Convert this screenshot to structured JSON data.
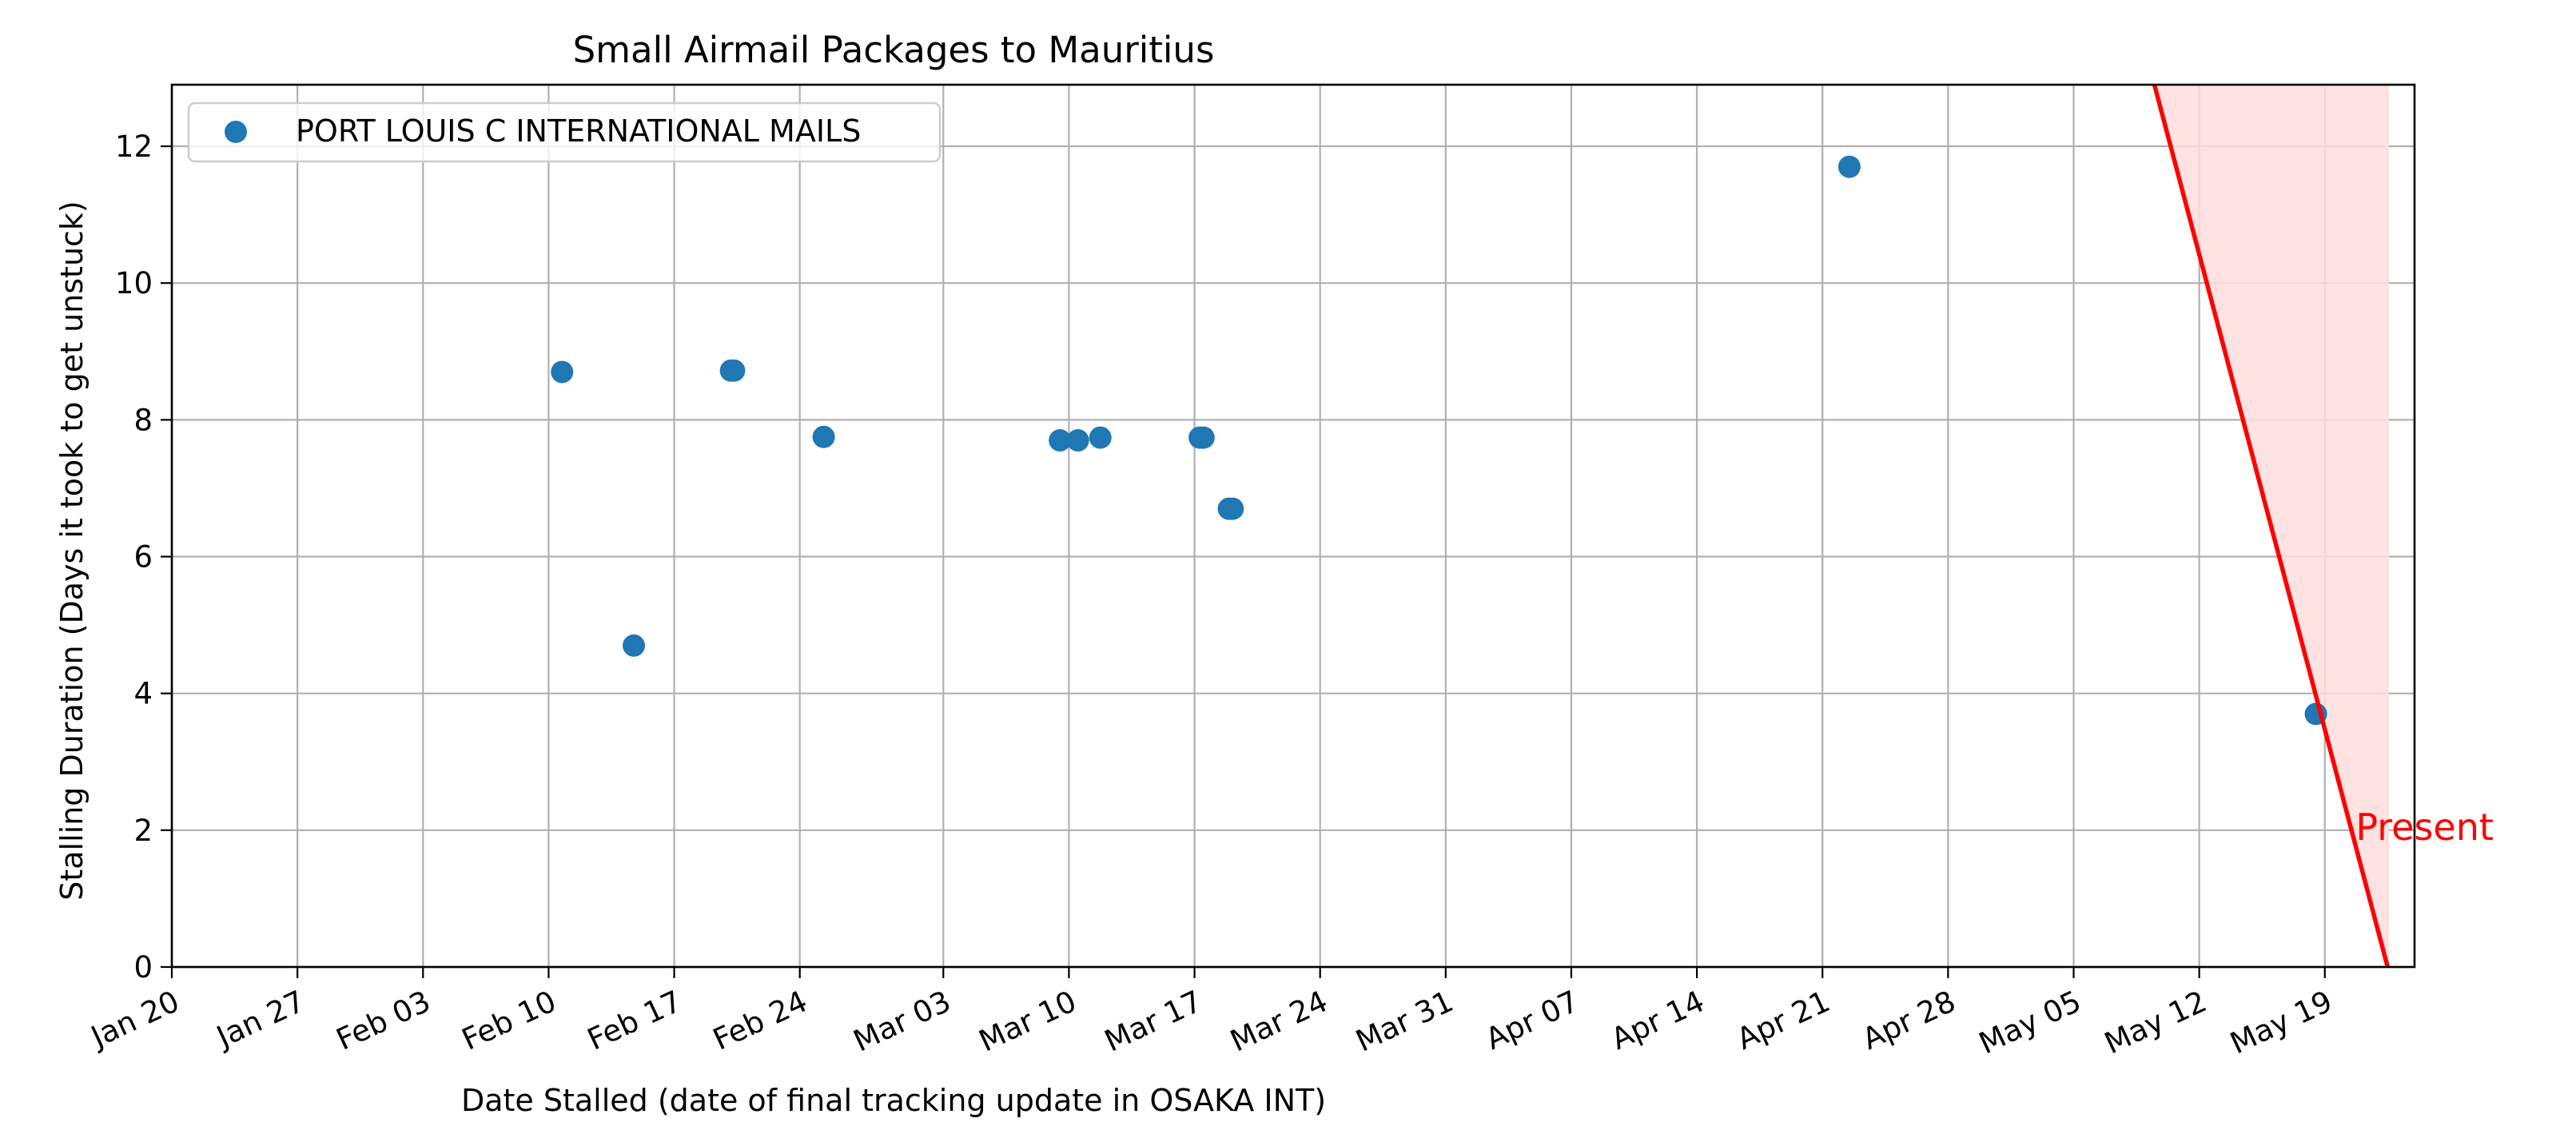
{
  "chart_data": {
    "type": "scatter",
    "title": "Small Airmail Packages to Mauritius",
    "xlabel": "Date Stalled (date of final tracking update in OSAKA INT)",
    "ylabel": "Stalling Duration (Days it took to get unstuck)",
    "x_axis_type": "date",
    "xlim": [
      "2024-01-20",
      "2024-05-24"
    ],
    "ylim": [
      0,
      12.9
    ],
    "x_ticks": [
      {
        "date": "2024-01-20",
        "label": "Jan 20"
      },
      {
        "date": "2024-01-27",
        "label": "Jan 27"
      },
      {
        "date": "2024-02-03",
        "label": "Feb 03"
      },
      {
        "date": "2024-02-10",
        "label": "Feb 10"
      },
      {
        "date": "2024-02-17",
        "label": "Feb 17"
      },
      {
        "date": "2024-02-24",
        "label": "Feb 24"
      },
      {
        "date": "2024-03-03",
        "label": "Mar 03"
      },
      {
        "date": "2024-03-10",
        "label": "Mar 10"
      },
      {
        "date": "2024-03-17",
        "label": "Mar 17"
      },
      {
        "date": "2024-03-24",
        "label": "Mar 24"
      },
      {
        "date": "2024-03-31",
        "label": "Mar 31"
      },
      {
        "date": "2024-04-07",
        "label": "Apr 07"
      },
      {
        "date": "2024-04-14",
        "label": "Apr 14"
      },
      {
        "date": "2024-04-21",
        "label": "Apr 21"
      },
      {
        "date": "2024-04-28",
        "label": "Apr 28"
      },
      {
        "date": "2024-05-05",
        "label": "May 05"
      },
      {
        "date": "2024-05-12",
        "label": "May 12"
      },
      {
        "date": "2024-05-19",
        "label": "May 19"
      }
    ],
    "y_ticks": [
      {
        "value": 0,
        "label": "0"
      },
      {
        "value": 2,
        "label": "2"
      },
      {
        "value": 4,
        "label": "4"
      },
      {
        "value": 6,
        "label": "6"
      },
      {
        "value": 8,
        "label": "8"
      },
      {
        "value": 10,
        "label": "10"
      },
      {
        "value": 12,
        "label": "12"
      }
    ],
    "grid": true,
    "legend_position": "upper-left",
    "series": [
      {
        "name": "PORT LOUIS C INTERNATIONAL MAILS",
        "color": "#1f77b4",
        "points": [
          {
            "x": "2024-02-10T18:00",
            "y": 8.7
          },
          {
            "x": "2024-02-14T18:00",
            "y": 4.7
          },
          {
            "x": "2024-02-20T04:00",
            "y": 8.72
          },
          {
            "x": "2024-02-20T08:00",
            "y": 8.72
          },
          {
            "x": "2024-02-25T08:00",
            "y": 7.75
          },
          {
            "x": "2024-03-09T12:00",
            "y": 7.7
          },
          {
            "x": "2024-03-10T12:00",
            "y": 7.7
          },
          {
            "x": "2024-03-11T18:00",
            "y": 7.74
          },
          {
            "x": "2024-03-17T07:00",
            "y": 7.74
          },
          {
            "x": "2024-03-17T12:00",
            "y": 7.74
          },
          {
            "x": "2024-03-18T22:00",
            "y": 6.7
          },
          {
            "x": "2024-03-19T03:00",
            "y": 6.7
          },
          {
            "x": "2024-04-22T12:00",
            "y": 11.7
          },
          {
            "x": "2024-05-18T12:00",
            "y": 3.7
          }
        ]
      }
    ],
    "present_marker": {
      "label": "Present",
      "color": "#ff0000",
      "fill_color": "#ffdddd",
      "present_date": "2024-05-22T12:00",
      "line_start": {
        "x": "2024-05-09T12:00",
        "y": 12.9
      },
      "line_end": {
        "x": "2024-05-22T12:00",
        "y": 0
      }
    }
  }
}
